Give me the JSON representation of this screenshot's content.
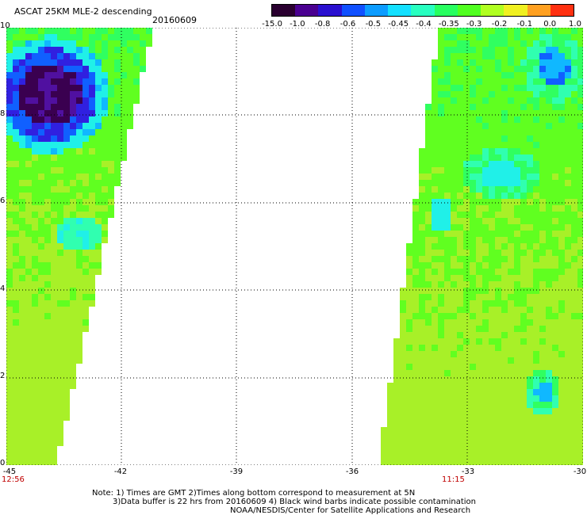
{
  "header": {
    "title": "ASCAT 25KM MLE-2 descending",
    "date": "20160609"
  },
  "colorbar": {
    "labels": [
      "-15.0",
      "-1.0",
      "-0.8",
      "-0.6",
      "-0.5",
      "-0.45",
      "-0.4",
      "-0.35",
      "-0.3",
      "-0.2",
      "-0.1",
      "0.0",
      "1.0"
    ],
    "colors": [
      "#2a0030",
      "#4a0090",
      "#2a10d0",
      "#1050ff",
      "#0c9cff",
      "#14e0ff",
      "#28ffc0",
      "#28ff60",
      "#50ff20",
      "#b0ff20",
      "#f0f020",
      "#ffa020",
      "#ff3010"
    ]
  },
  "axes": {
    "y_ticks": [
      "10",
      "8",
      "6",
      "4",
      "2",
      "0"
    ],
    "x_ticks": [
      "-45",
      "-42",
      "-39",
      "-36",
      "-33",
      "-30"
    ],
    "time_labels": [
      "12:56",
      "11:15"
    ]
  },
  "notes": {
    "line1": "Note: 1) Times are GMT 2)Times along bottom correspond to measurement at 5N",
    "line2": "3)Data buffer is 22 hrs from 20160609 4) Black wind barbs indicate possible contamination",
    "line3": "NOAA/NESDIS/Center for Satellite Applications and Research"
  },
  "map_data": {
    "lon_range": [
      -45,
      -30
    ],
    "lat_range": [
      0,
      10
    ],
    "left_swath_edge": "east edge near -41 at 10N, near -43.5 at 0N",
    "right_swath_edge": "west edge near -34 at 10N, near -35.7 at 0N",
    "low_value_region": "deep purple near -44 to -43, 8-10N"
  }
}
